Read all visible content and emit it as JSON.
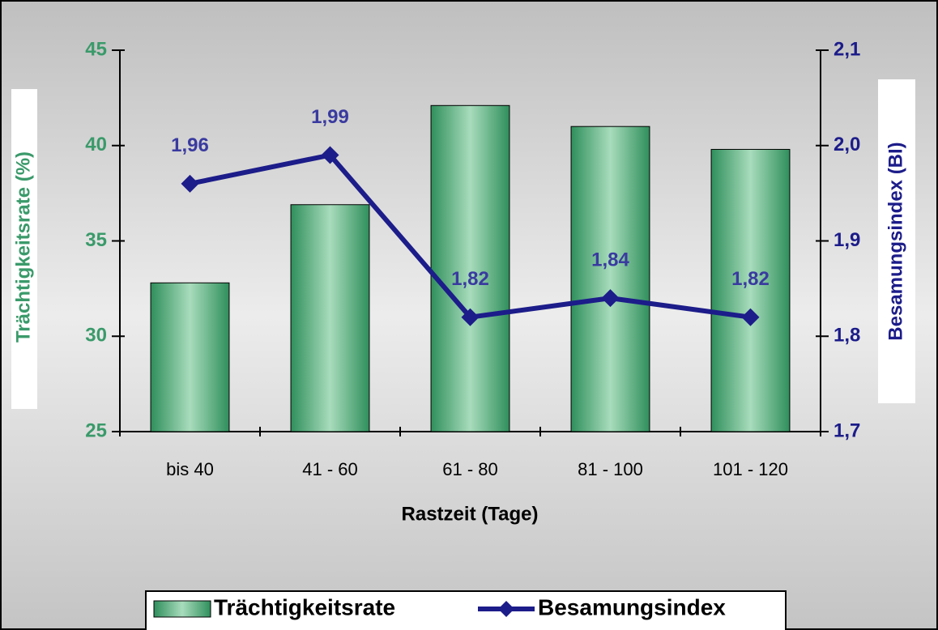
{
  "chart_data": {
    "type": "bar",
    "x_label": "Rastzeit (Tage)",
    "y_label": "Trächtigkeitsrate (%)",
    "y2_label": "Besamungsindex (BI)",
    "categories": [
      "bis 40",
      "41 - 60",
      "61 - 80",
      "81 - 100",
      "101 - 120"
    ],
    "series": [
      {
        "name": "Trächtigkeitsrate",
        "type": "bar",
        "color": "#2f8f5c",
        "values": [
          32.8,
          36.9,
          42.1,
          41.0,
          39.8
        ]
      },
      {
        "name": "Besamungsindex",
        "type": "line",
        "axis": "y2",
        "color": "#1c1c8a",
        "values": [
          1.96,
          1.99,
          1.82,
          1.84,
          1.82
        ],
        "value_labels": [
          "1,96",
          "1,99",
          "1,82",
          "1,84",
          "1,82"
        ]
      }
    ],
    "ylim": [
      25,
      45
    ],
    "yticks": [
      25,
      30,
      35,
      40,
      45
    ],
    "y2lim": [
      1.7,
      2.1
    ],
    "y2ticks": [
      {
        "value": 1.7,
        "label": "1,7"
      },
      {
        "value": 1.8,
        "label": "1,8"
      },
      {
        "value": 1.9,
        "label": "1,9"
      },
      {
        "value": 2.0,
        "label": "2,0"
      },
      {
        "value": 2.1,
        "label": "2,1"
      }
    ],
    "legend": "bottom"
  }
}
